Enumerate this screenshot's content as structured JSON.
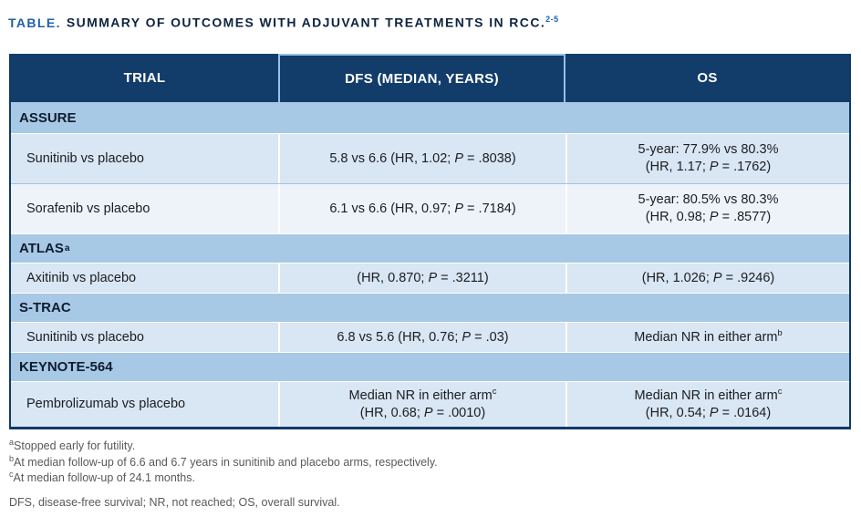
{
  "title": {
    "label": "TABLE.",
    "text": "SUMMARY OF OUTCOMES WITH ADJUVANT TREATMENTS IN RCC.",
    "citation": "2-5"
  },
  "table": {
    "columns": [
      "TRIAL",
      "DFS (MEDIAN, YEARS)",
      "OS"
    ],
    "rows": [
      {
        "type": "section",
        "label": "ASSURE"
      },
      {
        "type": "data",
        "trial": "Sunitinib vs placebo",
        "dfs": {
          "l1a": "5.8 vs 6.6 (HR, 1.02; ",
          "l1p": "P",
          "l1b": " = .8038)"
        },
        "os": {
          "l1a": "5-year: 77.9% vs 80.3%",
          "l2a": "(HR, 1.17; ",
          "l2p": "P",
          "l2b": " = .1762)"
        }
      },
      {
        "type": "data",
        "trial": "Sorafenib vs placebo",
        "dfs": {
          "l1a": "6.1 vs 6.6 (HR, 0.97; ",
          "l1p": "P",
          "l1b": " = .7184)"
        },
        "os": {
          "l1a": "5-year: 80.5% vs 80.3%",
          "l2a": "(HR, 0.98; ",
          "l2p": "P",
          "l2b": " = .8577)"
        }
      },
      {
        "type": "section",
        "label": "ATLAS",
        "sup": "a"
      },
      {
        "type": "data",
        "trial": "Axitinib vs placebo",
        "dfs": {
          "l1a": "(HR, 0.870; ",
          "l1p": "P",
          "l1b": " = .3211)"
        },
        "os": {
          "l1a": "(HR, 1.026; ",
          "l1p": "P",
          "l1b": " = .9246)"
        }
      },
      {
        "type": "section",
        "label": "S-TRAC"
      },
      {
        "type": "data",
        "trial": "Sunitinib vs placebo",
        "dfs": {
          "l1a": "6.8 vs 5.6 (HR, 0.76; ",
          "l1p": "P",
          "l1b": " = .03)"
        },
        "os": {
          "l1a": "Median NR in either arm",
          "l1s": "b"
        }
      },
      {
        "type": "section",
        "label": "KEYNOTE-564"
      },
      {
        "type": "data",
        "trial": "Pembrolizumab vs placebo",
        "dfs": {
          "l1a": "Median NR in either arm",
          "l1s": "c",
          "l2a": "(HR, 0.68; ",
          "l2p": "P",
          "l2b": " = .0010)"
        },
        "os": {
          "l1a": "Median NR in either arm",
          "l1s": "c",
          "l2a": "(HR, 0.54; ",
          "l2p": "P",
          "l2b": " = .0164)"
        }
      }
    ]
  },
  "footnotes": [
    {
      "sup": "a",
      "text": "Stopped early for futility."
    },
    {
      "sup": "b",
      "text": "At median follow-up of 6.6 and 6.7 years in sunitinib and placebo arms, respectively."
    },
    {
      "sup": "c",
      "text": "At median follow-up of 24.1 months."
    }
  ],
  "abbreviations": "DFS, disease-free survival; NR, not reached; OS, overall survival.",
  "colors": {
    "header_bg": "#123d6a",
    "section_bg": "#a8c9e5",
    "row_bg": "#d9e6f3",
    "row_alt_bg": "#eef3fa",
    "border_navy": "#0f3a66",
    "header_highlight": "#93c2e6",
    "title_blue": "#2161a8",
    "title_dark": "#0d2440",
    "body_text": "#1b1d21",
    "footnote_gray": "#58595b"
  }
}
